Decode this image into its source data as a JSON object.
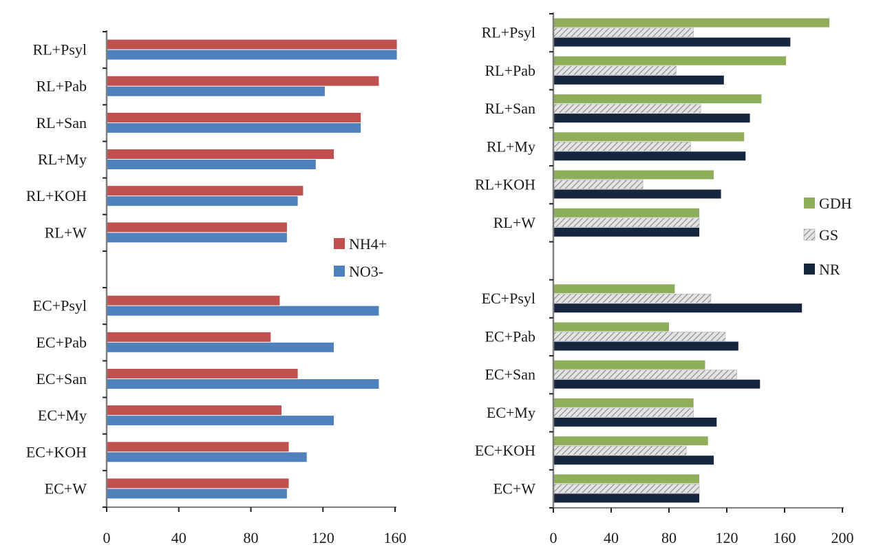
{
  "colors": {
    "nh4": "#c0504d",
    "no3": "#4f81bd",
    "gdh": "#8fae5a",
    "gs_fill": "#e4e4e4",
    "gs_hatch": "#8c8c8c",
    "nr": "#17263f",
    "axis": "#7f7f7f"
  },
  "chart_data": [
    {
      "type": "bar",
      "orientation": "horizontal",
      "title": "",
      "xlabel": "",
      "ylabel": "",
      "xlim": [
        0,
        160
      ],
      "xticks": [
        "0",
        "40",
        "80",
        "120",
        "160"
      ],
      "categories": [
        "RL+Psyl",
        "RL+Pab",
        "RL+San",
        "RL+My",
        "RL+KOH",
        "RL+W",
        "",
        "EC+Psyl",
        "EC+Pab",
        "EC+San",
        "EC+My",
        "EC+KOH",
        "EC+W"
      ],
      "series": [
        {
          "name": "NH4+",
          "color_key": "nh4",
          "pattern": "solid",
          "values": [
            161,
            151,
            141,
            126,
            109,
            100,
            null,
            96,
            91,
            106,
            97,
            101,
            101
          ]
        },
        {
          "name": "NO3-",
          "color_key": "no3",
          "pattern": "solid",
          "values": [
            161,
            121,
            141,
            116,
            106,
            100,
            null,
            151,
            126,
            151,
            126,
            111,
            100
          ]
        }
      ],
      "legend": {
        "position": "right-middle",
        "entries": [
          "NH4+",
          "NO3-"
        ]
      }
    },
    {
      "type": "bar",
      "orientation": "horizontal",
      "title": "",
      "xlabel": "",
      "ylabel": "",
      "xlim": [
        0,
        200
      ],
      "xticks": [
        "0",
        "40",
        "80",
        "120",
        "160",
        "200"
      ],
      "categories": [
        "RL+Psyl",
        "RL+Pab",
        "RL+San",
        "RL+My",
        "RL+KOH",
        "RL+W",
        "",
        "EC+Psyl",
        "EC+Pab",
        "EC+San",
        "EC+My",
        "EC+KOH",
        "EC+W"
      ],
      "series": [
        {
          "name": "GDH",
          "color_key": "gdh",
          "pattern": "solid",
          "values": [
            191,
            161,
            144,
            132,
            111,
            101,
            null,
            84,
            80,
            105,
            97,
            107,
            101
          ]
        },
        {
          "name": "GS",
          "color_key": "gs_fill",
          "pattern": "hatched",
          "values": [
            97,
            85,
            102,
            95,
            62,
            101,
            null,
            109,
            119,
            127,
            97,
            92,
            101
          ]
        },
        {
          "name": "NR",
          "color_key": "nr",
          "pattern": "solid",
          "values": [
            164,
            118,
            136,
            133,
            116,
            101,
            null,
            172,
            128,
            143,
            113,
            111,
            101
          ]
        }
      ],
      "legend": {
        "position": "right-middle",
        "entries": [
          "GDH",
          "GS",
          "NR"
        ]
      }
    }
  ]
}
